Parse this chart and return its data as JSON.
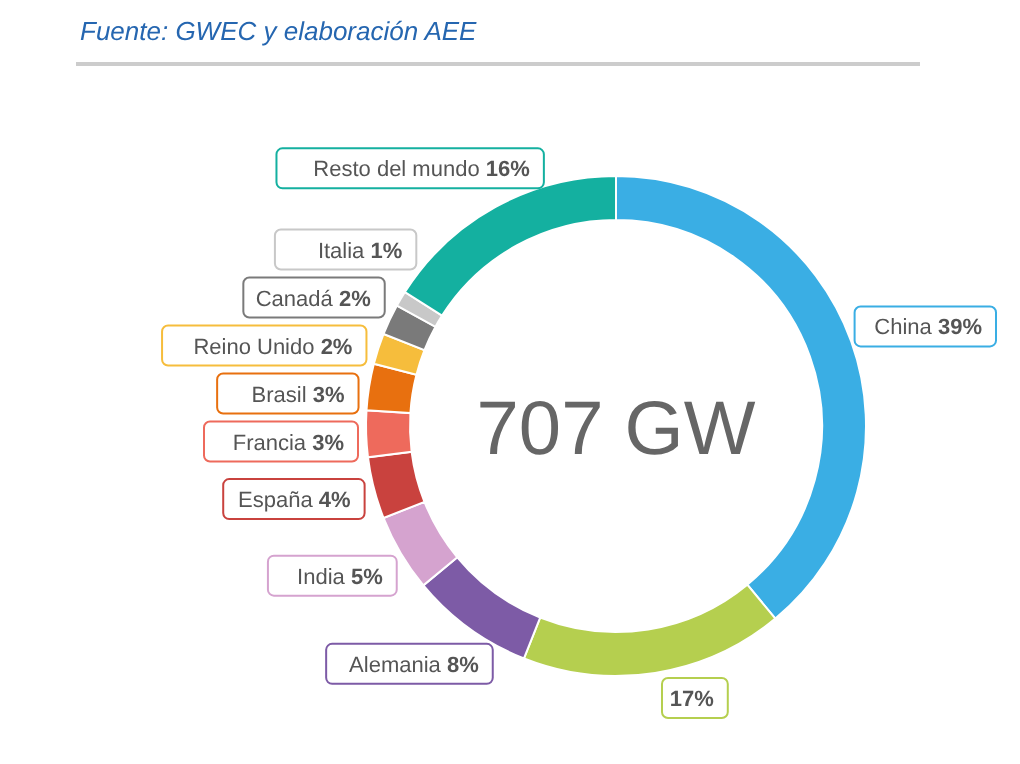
{
  "chart_data": {
    "type": "donut",
    "subtitle": "Fuente: GWEC y elaboración AEE",
    "categories": [
      "China",
      null,
      "Alemania",
      "India",
      "España",
      "Francia",
      "Brasil",
      "Reino Unido",
      "Canadá",
      "Italia",
      "Resto del mundo"
    ],
    "values": [
      39,
      17,
      8,
      5,
      4,
      3,
      3,
      2,
      2,
      1,
      16
    ],
    "value_labels": [
      "39%",
      "17%",
      "8%",
      "5%",
      "4%",
      "3%",
      "3%",
      "2%",
      "2%",
      "1%",
      "16%"
    ],
    "colors": [
      "#3aaee4",
      "#b5cf4f",
      "#7d5ba6",
      "#d5a3cf",
      "#c9423e",
      "#ee6a5c",
      "#e8700f",
      "#f6bd3c",
      "#7a7a7a",
      "#c8c8c8",
      "#14b0a0"
    ],
    "annotations": [
      "707 GW"
    ],
    "legend": false
  }
}
